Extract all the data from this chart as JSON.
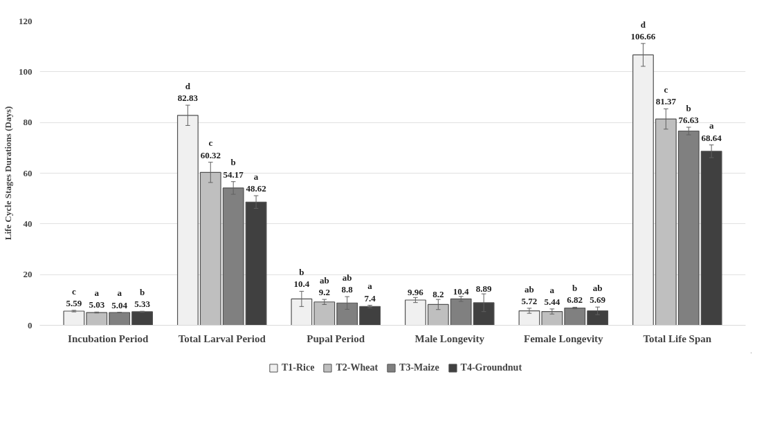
{
  "chart_data": {
    "type": "bar",
    "ylabel": "Life Cycle Stages Durations (Days)",
    "categories": [
      "Incubation Period",
      "Total Larval Period",
      "Pupal Period",
      "Male Longevity",
      "Female Longevity",
      "Total Life Span"
    ],
    "series": [
      {
        "name": "T1-Rice",
        "color": "#f0f0f0",
        "values": [
          5.59,
          82.83,
          10.4,
          9.96,
          5.72,
          106.66
        ],
        "errors": [
          0.3,
          4,
          3,
          1,
          1,
          4.5
        ],
        "value_labels": [
          "c\n5.59",
          "d\n82.83",
          "b\n10.4",
          "9.96",
          "ab\n5.72",
          "d\n106.66"
        ]
      },
      {
        "name": "T2-Wheat",
        "color": "#bfbfbf",
        "values": [
          5.03,
          60.32,
          9.2,
          8.2,
          5.44,
          81.37
        ],
        "errors": [
          0.2,
          4,
          1,
          2,
          1,
          4
        ],
        "value_labels": [
          "a\n5.03",
          "c\n60.32",
          "ab\n9.2",
          "8.2",
          "a\n5.44",
          "c\n81.37"
        ]
      },
      {
        "name": "T3-Maize",
        "color": "#808080",
        "values": [
          5.04,
          54.17,
          8.8,
          10.4,
          6.82,
          76.63
        ],
        "errors": [
          0.1,
          2.5,
          2.5,
          1,
          0.3,
          1.5
        ],
        "value_labels": [
          "a\n5.04",
          "b\n54.17",
          "ab\n8.8",
          "10.4",
          "b\n6.82",
          "b\n76.63"
        ]
      },
      {
        "name": "T4-Groundnut",
        "color": "#404040",
        "values": [
          5.33,
          48.62,
          7.4,
          8.89,
          5.69,
          68.64
        ],
        "errors": [
          0.2,
          2.5,
          0.5,
          3.5,
          1.5,
          2.5
        ],
        "value_labels": [
          "b\n5.33",
          "a\n48.62",
          "a\n7.4",
          "8.89",
          "ab\n5.69",
          "a\n68.64"
        ]
      }
    ],
    "ylim": [
      0,
      120
    ],
    "yticks": [
      0,
      20,
      40,
      60,
      80,
      100,
      120
    ],
    "grid": "y",
    "legend": "bottom"
  }
}
